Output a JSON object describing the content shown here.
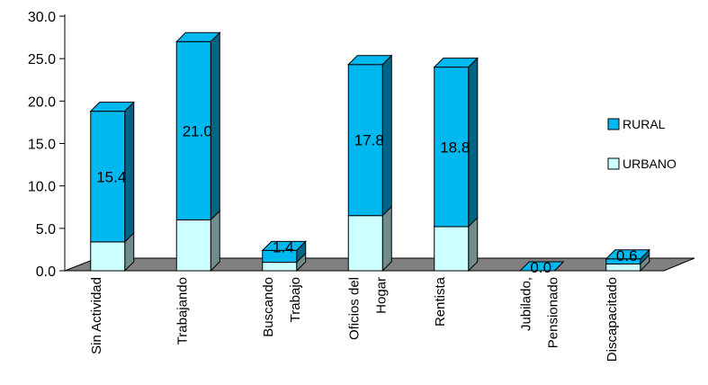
{
  "chart_data": {
    "type": "bar",
    "stacked": true,
    "three_d": true,
    "categories": [
      [
        "Sin Actividad"
      ],
      [
        "Trabajando"
      ],
      [
        "Buscando",
        "Trabajo"
      ],
      [
        "Oficios del",
        "Hogar"
      ],
      [
        "Rentista"
      ],
      [
        "Jubilado,",
        "Pensionado"
      ],
      [
        "Discapacitado"
      ]
    ],
    "series": [
      {
        "name": "URBANO",
        "color": "#ccffff",
        "values": [
          3.4,
          6.0,
          1.0,
          6.5,
          5.2,
          0.0,
          0.8
        ]
      },
      {
        "name": "RURAL",
        "color": "#00b8f0",
        "values": [
          15.4,
          21.0,
          1.4,
          17.8,
          18.8,
          0.0,
          0.6
        ]
      }
    ],
    "data_labels": [
      "15.4",
      "21.0",
      "1.4",
      "17.8",
      "18.8",
      "0.0",
      "0.6"
    ],
    "y_ticks": [
      "0.0",
      "5.0",
      "10.0",
      "15.0",
      "20.0",
      "25.0",
      "30.0"
    ],
    "ylim": [
      0,
      30
    ],
    "floor_color": "#808080",
    "legend_position": "right",
    "grid": false
  }
}
